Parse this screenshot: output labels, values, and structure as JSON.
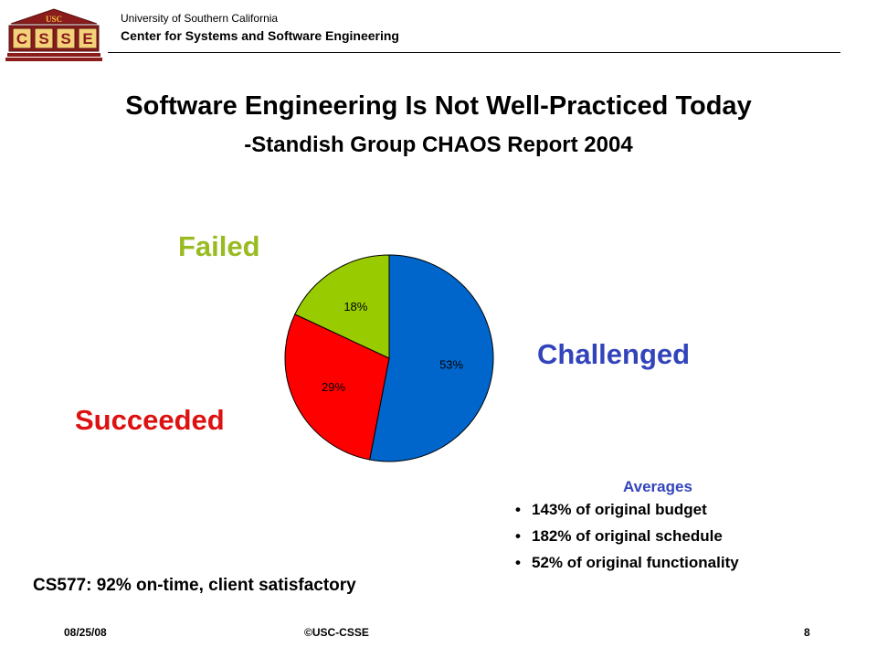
{
  "header": {
    "logo_top": "USC",
    "logo_letters": [
      "C",
      "S",
      "S",
      "E"
    ],
    "university": "University of Southern California",
    "center": "Center for Systems and Software Engineering"
  },
  "slide": {
    "title": "Software Engineering Is Not Well-Practiced Today",
    "subtitle": "-Standish Group CHAOS Report 2004"
  },
  "chart_data": {
    "type": "pie",
    "slices": [
      {
        "label": "Challenged",
        "value": 53,
        "display": "53%",
        "color": "#0066cc"
      },
      {
        "label": "Succeeded",
        "value": 29,
        "display": "29%",
        "color": "#ff0000"
      },
      {
        "label": "Failed",
        "value": 18,
        "display": "18%",
        "color": "#99cc00"
      }
    ],
    "label_colors": {
      "Failed": "#99bb22",
      "Challenged": "#3344bb",
      "Succeeded": "#dd1111"
    }
  },
  "averages": {
    "title": "Averages",
    "items": [
      "143% of original budget",
      "182% of original schedule",
      "52% of original functionality"
    ]
  },
  "note": "CS577: 92% on-time, client satisfactory",
  "footer": {
    "date": "08/25/08",
    "copyright": "©USC-CSSE",
    "page": "8"
  }
}
